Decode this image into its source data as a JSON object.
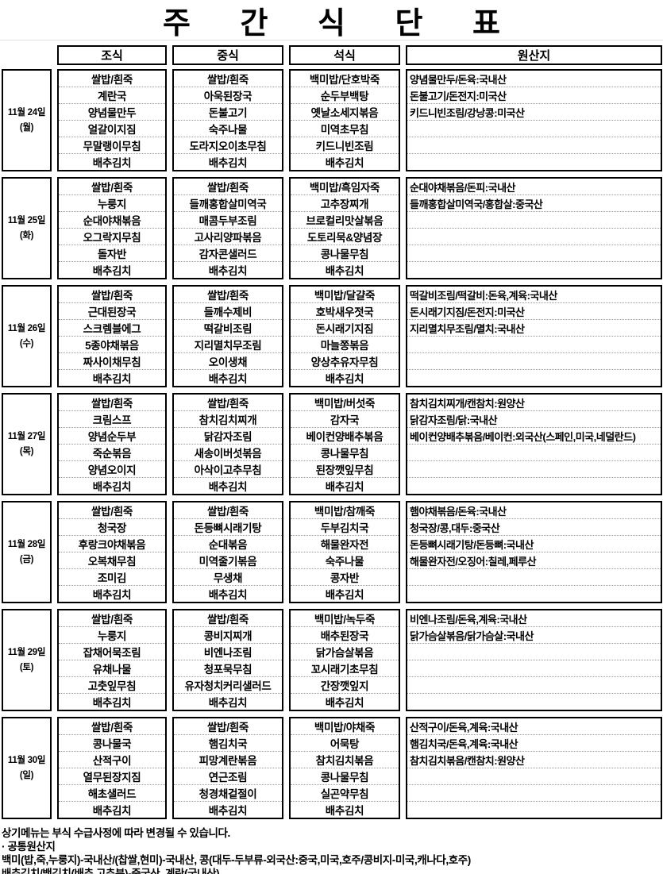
{
  "title": "주 간 식 단 표",
  "headers": {
    "0": "조식",
    "1": "중식",
    "2": "석식",
    "3": "원산지"
  },
  "days": [
    {
      "date": "11월 24일",
      "dow": "(월)",
      "breakfast": [
        "쌀밥/흰죽",
        "계란국",
        "양념물만두",
        "얼갈이지짐",
        "무말랭이무침",
        "배추김치"
      ],
      "lunch": [
        "쌀밥/흰죽",
        "아욱된장국",
        "돈불고기",
        "숙주나물",
        "도라지오이초무침",
        "배추김치"
      ],
      "dinner": [
        "백미밥/단호박죽",
        "순두부백탕",
        "옛날소세지볶음",
        "미역초무침",
        "키드니빈조림",
        "배추김치"
      ],
      "origin": [
        "양념물만두/돈육:국내산",
        "돈불고기/돈전지:미국산",
        "키드니빈조림/강낭콩:미국산"
      ]
    },
    {
      "date": "11월 25일",
      "dow": "(화)",
      "breakfast": [
        "쌀밥/흰죽",
        "누룽지",
        "순대야채볶음",
        "오그락지무침",
        "돌자반",
        "배추김치"
      ],
      "lunch": [
        "쌀밥/흰죽",
        "들깨홍합살미역국",
        "매콤두부조림",
        "고사리양파볶음",
        "감자콘샐러드",
        "배추김치"
      ],
      "dinner": [
        "백미밥/흑임자죽",
        "고추장찌개",
        "브로컬리맛살볶음",
        "도토리묵&양념장",
        "콩나물무침",
        "배추김치"
      ],
      "origin": [
        "순대야채볶음/돈피:국내산",
        "들깨홍합살미역국/홍합살:중국산"
      ]
    },
    {
      "date": "11월 26일",
      "dow": "(수)",
      "breakfast": [
        "쌀밥/흰죽",
        "근대된장국",
        "스크렘블에그",
        "5종야채볶음",
        "짜사이채무침",
        "배추김치"
      ],
      "lunch": [
        "쌀밥/흰죽",
        "들깨수제비",
        "떡갈비조림",
        "지리멸치무조림",
        "오이생채",
        "배추김치"
      ],
      "dinner": [
        "백미밥/달걀죽",
        "호박새우젓국",
        "돈시래기지짐",
        "마늘쫑볶음",
        "양상추유자무침",
        "배추김치"
      ],
      "origin": [
        "떡갈비조림/떡갈비:돈육,계육:국내산",
        "돈시래기지짐/돈전지:미국산",
        "지리멸치무조림/멸치:국내산"
      ]
    },
    {
      "date": "11월 27일",
      "dow": "(목)",
      "breakfast": [
        "쌀밥/흰죽",
        "크림스프",
        "양념순두부",
        "죽순볶음",
        "양념오이지",
        "배추김치"
      ],
      "lunch": [
        "쌀밥/흰죽",
        "참치김치찌개",
        "닭감자조림",
        "새송이버섯볶음",
        "아삭이고추무침",
        "배추김치"
      ],
      "dinner": [
        "백미밥/버섯죽",
        "감자국",
        "베이컨양배추볶음",
        "콩나물무침",
        "된장깻잎무침",
        "배추김치"
      ],
      "origin": [
        "참치김치찌개/캔참치:원양산",
        "닭감자조림/닭:국내산",
        "베이컨양배추볶음/베이컨:외국산(스페인,미국,네덜란드)"
      ]
    },
    {
      "date": "11월 28일",
      "dow": "(금)",
      "breakfast": [
        "쌀밥/흰죽",
        "청국장",
        "후랑크야채볶음",
        "오복채무침",
        "조미김",
        "배추김치"
      ],
      "lunch": [
        "쌀밥/흰죽",
        "돈등뼈시래기탕",
        "순대볶음",
        "미역줄기볶음",
        "무생채",
        "배추김치"
      ],
      "dinner": [
        "백미밥/참깨죽",
        "두부김치국",
        "해물완자전",
        "숙주나물",
        "콩자반",
        "배추김치"
      ],
      "origin": [
        "햄야채볶음/돈육:국내산",
        "청국장/콩,대두:중국산",
        "돈등뼈시래기탕/돈등뼈:국내산",
        "해물완자전/오징어:칠레,페루산"
      ]
    },
    {
      "date": "11월 29일",
      "dow": "(토)",
      "breakfast": [
        "쌀밥/흰죽",
        "누룽지",
        "잡채어묵조림",
        "유채나물",
        "고춧잎무침",
        "배추김치"
      ],
      "lunch": [
        "쌀밥/흰죽",
        "콩비지찌개",
        "비엔나조림",
        "청포묵무침",
        "유자청치커리샐러드",
        "배추김치"
      ],
      "dinner": [
        "백미밥/녹두죽",
        "배추된장국",
        "닭가슴살볶음",
        "꼬시래기초무침",
        "간장깻잎지",
        "배추김치"
      ],
      "origin": [
        "비엔나조림/돈육,계육:국내산",
        "닭가슴살볶음/닭가슴살:국내산"
      ]
    },
    {
      "date": "11월 30일",
      "dow": "(일)",
      "breakfast": [
        "쌀밥/흰죽",
        "콩나물국",
        "산적구이",
        "열무된장지짐",
        "해초샐러드",
        "배추김치"
      ],
      "lunch": [
        "쌀밥/흰죽",
        "햄김치국",
        "피망계란볶음",
        "연근조림",
        "청경채겉절이",
        "배추김치"
      ],
      "dinner": [
        "백미밥/야채죽",
        "어묵탕",
        "참치김치볶음",
        "콩나물무침",
        "실곤약무침",
        "배추김치"
      ],
      "origin": [
        "산적구이/돈육,계육:국내산",
        "햄김치국/돈육,계육:국내산",
        "참치김치볶음/캔참치:원양산"
      ]
    }
  ],
  "footer": {
    "note": "상기메뉴는 부식 수급사정에 따라 변경될 수 있습니다.",
    "common_origin_label": "· 공통원산지",
    "origin_line1": "백미(밥,죽,누룽지)-국내산/(찹쌀,현미)-국내산, 콩(대두-두부류-외국산:중국,미국,호주/콩비지-미국,캐나다,호주)",
    "origin_line2": "배추김치/백김치(배추,고추분)-중국산, 계란(국내산)"
  },
  "colors": {
    "border": "#000000",
    "background": "#ffffff",
    "separator": "#9a9a9a"
  }
}
